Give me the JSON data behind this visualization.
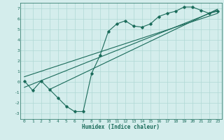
{
  "xlabel": "Humidex (Indice chaleur)",
  "ylabel": "",
  "bg_color": "#d4edec",
  "grid_color": "#afd8d4",
  "line_color": "#1a6b5a",
  "xlim": [
    -0.5,
    23.5
  ],
  "ylim": [
    -3.5,
    7.5
  ],
  "xticks": [
    0,
    1,
    2,
    3,
    4,
    5,
    6,
    7,
    8,
    9,
    10,
    11,
    12,
    13,
    14,
    15,
    16,
    17,
    18,
    19,
    20,
    21,
    22,
    23
  ],
  "yticks": [
    -3,
    -2,
    -1,
    0,
    1,
    2,
    3,
    4,
    5,
    6,
    7
  ],
  "scatter_x": [
    0,
    1,
    2,
    3,
    4,
    5,
    6,
    7,
    8,
    9,
    10,
    11,
    12,
    13,
    14,
    15,
    16,
    17,
    18,
    19,
    20,
    21,
    22,
    23
  ],
  "scatter_y": [
    0.1,
    -0.8,
    0.1,
    -0.7,
    -1.5,
    -2.3,
    -2.8,
    -2.8,
    0.8,
    2.5,
    4.8,
    5.5,
    5.8,
    5.3,
    5.2,
    5.5,
    6.2,
    6.5,
    6.7,
    7.1,
    7.1,
    6.8,
    6.5,
    6.7
  ],
  "line1_x": [
    0,
    23
  ],
  "line1_y": [
    -0.5,
    6.8
  ],
  "line2_x": [
    0,
    23
  ],
  "line2_y": [
    0.5,
    6.5
  ],
  "line3_x": [
    3,
    23
  ],
  "line3_y": [
    -0.7,
    6.9
  ],
  "xlabel_fontsize": 5.5,
  "tick_fontsize": 4.5
}
